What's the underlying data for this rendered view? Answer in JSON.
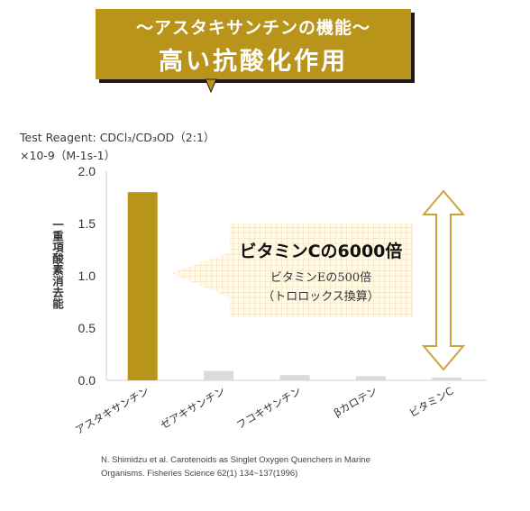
{
  "banner": {
    "subtitle": "〜アスタキサンチンの機能〜",
    "title": "高い抗酸化作用"
  },
  "colors": {
    "gold": "#b8941a",
    "grey_bar": "#dadada",
    "arrow": "#c9a43a"
  },
  "chart_data": {
    "type": "bar",
    "reagent": "Test Reagent: CDCl₃/CD₃OD（2:1）",
    "units": "×10-9（M-1s-1）",
    "ylabel": "一重項酸素消去能",
    "ylim": [
      0,
      2.0
    ],
    "yticks": [
      "2.0",
      "1.5",
      "1.0",
      "0.5",
      "0.0"
    ],
    "grid": false,
    "categories": [
      "アスタキサンチン",
      "ゼアキサンチン",
      "フコキサンチン",
      "βカロテン",
      "ビタミンC"
    ],
    "values": [
      1.8,
      0.09,
      0.05,
      0.04,
      0.0003
    ],
    "highlight_category": "アスタキサンチン",
    "callout": {
      "title": "ビタミンCの6000倍",
      "line1": "ビタミンEの500倍",
      "line2": "（トロロックス換算）"
    }
  },
  "footnote": {
    "line1": "N. Shimidzu et al. Carotenoids as Singlet Oxygen Quenchers in Marine",
    "line2": "Organisms. Fisheries Science 62(1) 134~137(1996)"
  }
}
